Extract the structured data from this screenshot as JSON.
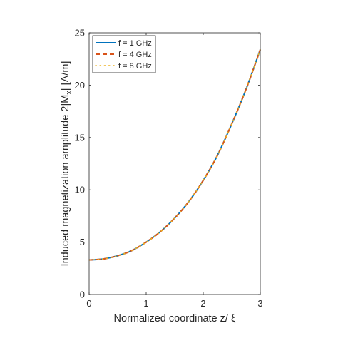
{
  "chart_data": {
    "type": "line",
    "xlabel": "Normalized coordinate z/ ξ",
    "ylabel": "Induced magnetization amplitude   2|M",
    "ylabel_sub": "x",
    "ylabel_tail": "| [A/m]",
    "xlim": [
      0,
      3
    ],
    "ylim": [
      0,
      25
    ],
    "xticks": [
      0,
      1,
      2,
      3
    ],
    "yticks": [
      0,
      5,
      10,
      15,
      20,
      25
    ],
    "grid": false,
    "legend_position": "top-left",
    "x": [
      0,
      0.25,
      0.5,
      0.75,
      1.0,
      1.25,
      1.5,
      1.75,
      2.0,
      2.25,
      2.5,
      2.75,
      3.0
    ],
    "series": [
      {
        "name": "f = 1 GHz",
        "color": "#0072BD",
        "style": "solid",
        "values": [
          3.3,
          3.4,
          3.7,
          4.2,
          5.0,
          6.0,
          7.3,
          8.9,
          10.9,
          13.3,
          16.3,
          19.6,
          23.4
        ]
      },
      {
        "name": "f = 4 GHz",
        "color": "#D95319",
        "style": "dashed",
        "values": [
          3.3,
          3.4,
          3.7,
          4.2,
          5.0,
          6.0,
          7.3,
          8.9,
          10.9,
          13.3,
          16.3,
          19.6,
          23.4
        ]
      },
      {
        "name": "f = 8 GHz",
        "color": "#EDB120",
        "style": "dotted",
        "values": [
          3.3,
          3.4,
          3.7,
          4.2,
          5.0,
          6.0,
          7.3,
          8.9,
          10.9,
          13.3,
          16.3,
          19.6,
          23.4
        ]
      }
    ]
  }
}
